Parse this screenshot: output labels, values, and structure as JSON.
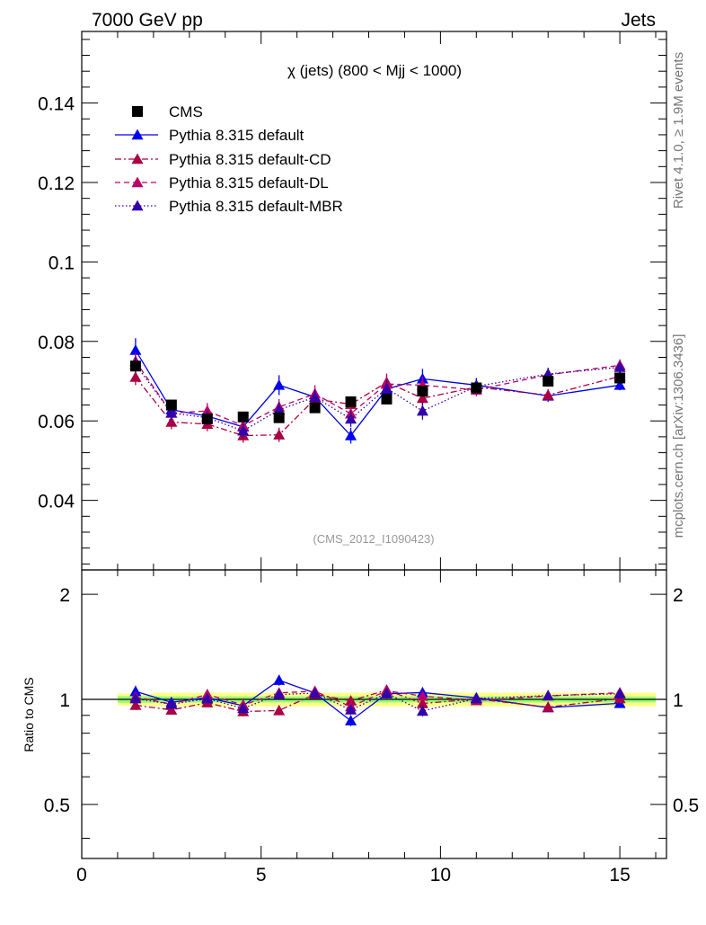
{
  "header": {
    "left": "7000 GeV pp",
    "right": "Jets"
  },
  "side_labels": {
    "rivet": "Rivet 4.1.0, ≥ 1.9M events",
    "mcplots": "mcplots.cern.ch [arXiv:1306.3436]"
  },
  "colors": {
    "cms": "#000000",
    "default": "#0000ee",
    "cd": "#aa0044",
    "dl": "#bb0066",
    "mbr": "#3300aa",
    "band_green": "#99ff77",
    "band_yellow": "#ffff88"
  },
  "chart_data": {
    "type": "line",
    "title": "χ (jets) (800 < Mjj < 1000)",
    "watermark": "(CMS_2012_I1090423)",
    "xlim": [
      0,
      16.3
    ],
    "ylim": [
      0.0225,
      0.158
    ],
    "yticks": [
      "0.04",
      "0.06",
      "0.08",
      "0.1",
      "0.12",
      "0.14"
    ],
    "xticks": [
      "0",
      "5",
      "10",
      "15"
    ],
    "x": [
      1.5,
      2.5,
      3.5,
      4.5,
      5.5,
      6.5,
      7.5,
      8.5,
      9.5,
      11.0,
      13.0,
      15.0
    ],
    "series": [
      {
        "name": "CMS",
        "style": "marker",
        "color": "#000000",
        "values": [
          0.0738,
          0.064,
          0.0605,
          0.061,
          0.0608,
          0.0633,
          0.0648,
          0.0655,
          0.0675,
          0.0683,
          0.07,
          0.0708
        ],
        "err": [
          0.0012,
          0.001,
          0.001,
          0.001,
          0.001,
          0.001,
          0.001,
          0.001,
          0.001,
          0.001,
          0.001,
          0.001
        ]
      },
      {
        "name": "Pythia 8.315 default",
        "style": "solid",
        "color": "#0000ee",
        "values": [
          0.0778,
          0.0628,
          0.0612,
          0.0585,
          0.069,
          0.066,
          0.0563,
          0.068,
          0.0706,
          0.069,
          0.0663,
          0.069
        ],
        "err": [
          0.003,
          0.002,
          0.002,
          0.002,
          0.0025,
          0.0022,
          0.002,
          0.0022,
          0.0025,
          0.0018,
          0.0015,
          0.0013
        ]
      },
      {
        "name": "Pythia 8.315 default-CD",
        "style": "dashdot",
        "color": "#aa0044",
        "values": [
          0.071,
          0.0597,
          0.0592,
          0.0563,
          0.0565,
          0.0655,
          0.0642,
          0.0697,
          0.0657,
          0.0685,
          0.0665,
          0.0712
        ],
        "err": [
          0.002,
          0.0018,
          0.0018,
          0.0018,
          0.0018,
          0.002,
          0.002,
          0.0022,
          0.0022,
          0.0015,
          0.0015,
          0.0014
        ]
      },
      {
        "name": "Pythia 8.315 default-DL",
        "style": "dashed",
        "color": "#bb0066",
        "values": [
          0.075,
          0.062,
          0.0625,
          0.0588,
          0.0635,
          0.0668,
          0.0618,
          0.0693,
          0.069,
          0.0678,
          0.0716,
          0.074
        ],
        "err": [
          0.0022,
          0.0018,
          0.002,
          0.0018,
          0.002,
          0.0022,
          0.002,
          0.0022,
          0.0022,
          0.0016,
          0.0016,
          0.0015
        ]
      },
      {
        "name": "Pythia 8.315 default-MBR",
        "style": "dotted",
        "color": "#3300aa",
        "values": [
          0.0742,
          0.062,
          0.0608,
          0.0575,
          0.0628,
          0.066,
          0.0605,
          0.0682,
          0.0625,
          0.0687,
          0.0718,
          0.0735
        ],
        "err": [
          0.002,
          0.0018,
          0.0018,
          0.0018,
          0.002,
          0.002,
          0.002,
          0.0022,
          0.0022,
          0.0016,
          0.0016,
          0.0015
        ]
      }
    ],
    "ratio": {
      "ylabel": "Ratio to CMS",
      "ylim": [
        0.35,
        2.35
      ],
      "yticks": [
        "0.5",
        "1",
        "2"
      ],
      "band_yellow": [
        0.04,
        0.045,
        0.045,
        0.045,
        0.045,
        0.045,
        0.045,
        0.045,
        0.045,
        0.045,
        0.045,
        0.045
      ],
      "band_green": [
        0.022,
        0.02,
        0.02,
        0.02,
        0.02,
        0.02,
        0.02,
        0.02,
        0.02,
        0.02,
        0.02,
        0.02
      ]
    }
  }
}
